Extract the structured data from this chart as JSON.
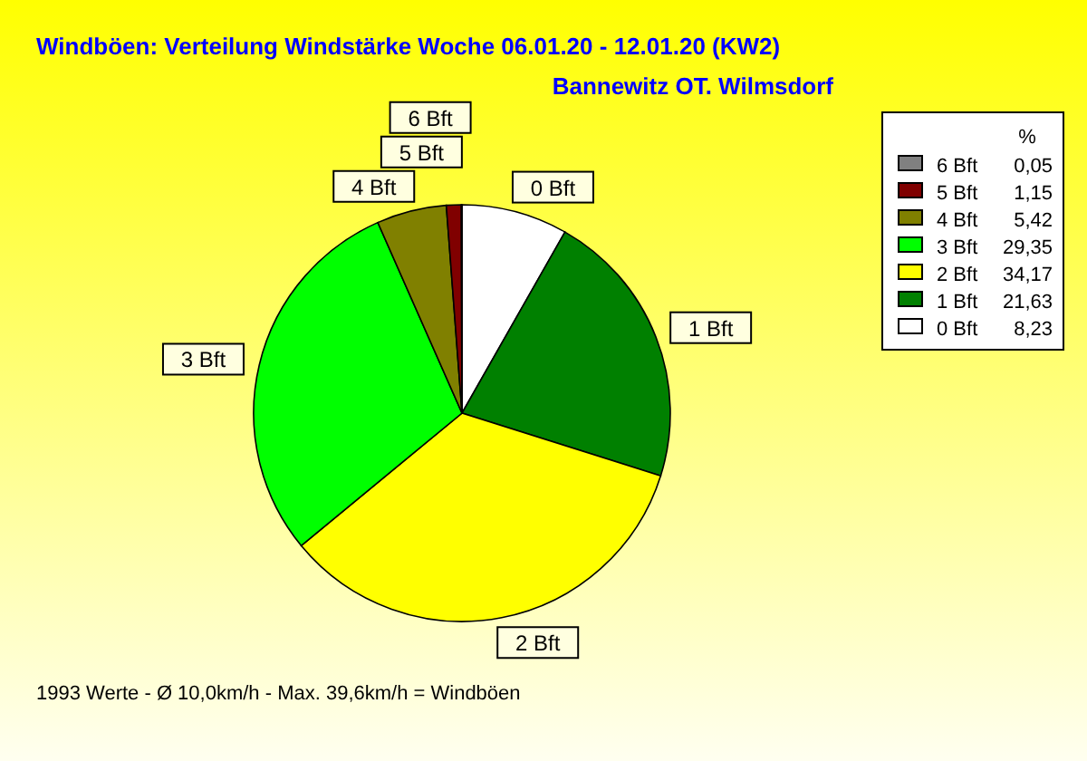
{
  "chart_data": {
    "type": "pie",
    "title": "Windböen: Verteilung Windstärke  Woche 06.01.20 - 12.01.20 (KW2)",
    "subtitle": "Bannewitz OT. Wilmsdorf",
    "legend_title": "%",
    "categories": [
      "0 Bft",
      "1 Bft",
      "2 Bft",
      "3 Bft",
      "4 Bft",
      "5 Bft",
      "6 Bft"
    ],
    "values": [
      8.23,
      21.63,
      34.17,
      29.35,
      5.42,
      1.15,
      0.05
    ],
    "colors": [
      "#ffffff",
      "#008000",
      "#ffff00",
      "#00ff00",
      "#808000",
      "#800000",
      "#808080"
    ],
    "value_labels": [
      "8,23",
      "21,63",
      "34,17",
      "29,35",
      "5,42",
      "1,15",
      "0,05"
    ],
    "legend": "top right",
    "annotations": [
      "1993 Werte   -   Ø 10,0km/h  -  Max. 39,6km/h = Windböen"
    ]
  }
}
